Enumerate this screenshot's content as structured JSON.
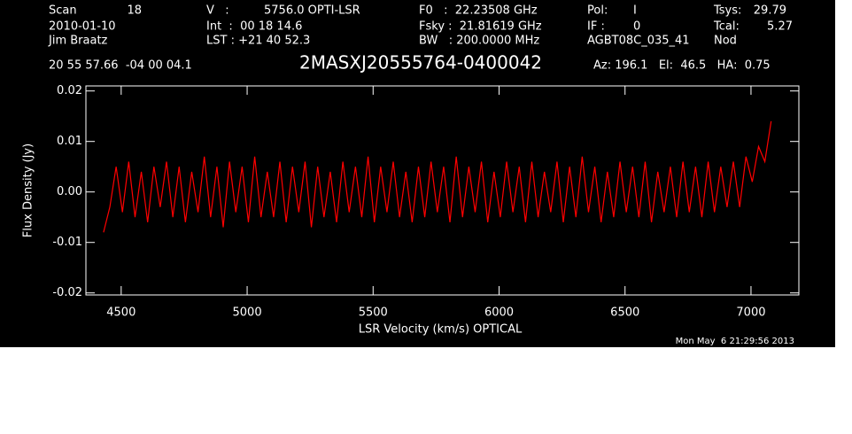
{
  "chart_data": {
    "type": "line",
    "title": "2MASXJ20555764-0400042",
    "annotations": [
      "Scan",
      "18",
      "V   :",
      "5756.0 OPTI-LSR",
      "F0   :  22.23508 GHz",
      "Pol:",
      "I",
      "Tsys:",
      "29.79",
      "2010-01-10",
      "Int  :  00 18 14.6",
      "Fsky :  21.81619 GHz",
      "IF :",
      "0",
      "Tcal:",
      "5.27",
      "Jim Braatz",
      "LST : +21 40 52.3",
      "BW   : 200.0000 MHz",
      "AGBT08C_035_41",
      "Nod",
      "20 55 57.66  -04 00 04.1",
      "Az: 196.1   El:  46.5   HA:  0.75",
      "Mon May  6 21:29:56 2013"
    ],
    "x_label": "LSR Velocity (km/s) OPTICAL",
    "y_label": "Flux Density (Jy)",
    "xlim": [
      4360,
      7190
    ],
    "ylim": [
      -0.0204,
      0.021
    ],
    "xticks": [
      4500,
      5000,
      5500,
      6000,
      6500,
      7000
    ],
    "yticks": [
      -0.02,
      -0.01,
      {
        "value": 0,
        "label": "0.00"
      },
      0.01,
      0.02
    ],
    "x": [
      4430,
      4455,
      4480,
      4505,
      4530,
      4555,
      4580,
      4605,
      4630,
      4655,
      4680,
      4705,
      4730,
      4755,
      4780,
      4805,
      4830,
      4855,
      4880,
      4905,
      4930,
      4955,
      4980,
      5005,
      5030,
      5055,
      5080,
      5105,
      5130,
      5155,
      5180,
      5205,
      5230,
      5255,
      5280,
      5305,
      5330,
      5355,
      5380,
      5405,
      5430,
      5455,
      5480,
      5505,
      5530,
      5555,
      5580,
      5605,
      5630,
      5655,
      5680,
      5705,
      5730,
      5755,
      5780,
      5805,
      5830,
      5855,
      5880,
      5905,
      5930,
      5955,
      5980,
      6005,
      6030,
      6055,
      6080,
      6105,
      6130,
      6155,
      6180,
      6205,
      6230,
      6255,
      6280,
      6305,
      6330,
      6355,
      6380,
      6405,
      6430,
      6455,
      6480,
      6505,
      6530,
      6555,
      6580,
      6605,
      6630,
      6655,
      6680,
      6705,
      6730,
      6755,
      6780,
      6805,
      6830,
      6855,
      6880,
      6905,
      6930,
      6955,
      6980,
      7005,
      7030,
      7055,
      7080
    ],
    "series": [
      {
        "color": "#ff0000",
        "values": [
          -0.008,
          -0.003,
          0.005,
          -0.004,
          0.006,
          -0.005,
          0.004,
          -0.006,
          0.005,
          -0.003,
          0.006,
          -0.005,
          0.005,
          -0.006,
          0.004,
          -0.004,
          0.007,
          -0.005,
          0.005,
          -0.007,
          0.006,
          -0.004,
          0.005,
          -0.006,
          0.007,
          -0.005,
          0.004,
          -0.005,
          0.006,
          -0.006,
          0.005,
          -0.004,
          0.006,
          -0.007,
          0.005,
          -0.005,
          0.004,
          -0.006,
          0.006,
          -0.004,
          0.005,
          -0.005,
          0.007,
          -0.006,
          0.005,
          -0.004,
          0.006,
          -0.005,
          0.004,
          -0.006,
          0.005,
          -0.005,
          0.006,
          -0.004,
          0.005,
          -0.006,
          0.007,
          -0.005,
          0.005,
          -0.004,
          0.006,
          -0.006,
          0.004,
          -0.005,
          0.006,
          -0.004,
          0.005,
          -0.006,
          0.006,
          -0.005,
          0.004,
          -0.004,
          0.006,
          -0.006,
          0.005,
          -0.005,
          0.007,
          -0.004,
          0.005,
          -0.006,
          0.004,
          -0.005,
          0.006,
          -0.004,
          0.005,
          -0.005,
          0.006,
          -0.006,
          0.004,
          -0.004,
          0.005,
          -0.005,
          0.006,
          -0.004,
          0.005,
          -0.005,
          0.006,
          -0.004,
          0.005,
          -0.003,
          0.006,
          -0.003,
          0.007,
          0.002,
          0.009,
          0.006,
          0.014
        ]
      }
    ]
  }
}
